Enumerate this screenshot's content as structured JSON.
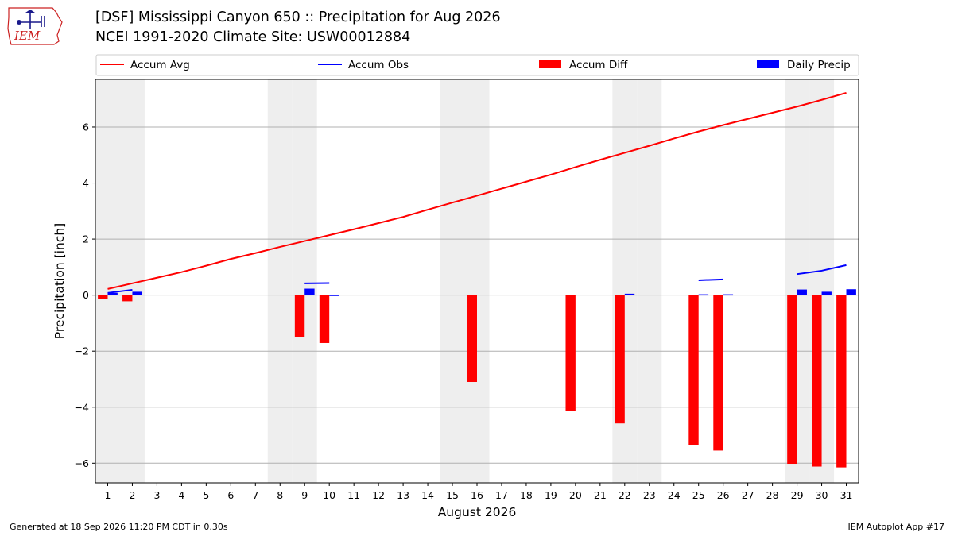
{
  "header": {
    "title_line1": "[DSF] Mississippi Canyon 650 :: Precipitation for Aug 2026",
    "title_line2": "NCEI 1991-2020 Climate Site: USW00012884"
  },
  "logo": {
    "text": "IEM",
    "accent_color": "#cc2222"
  },
  "footer": {
    "generated": "Generated at 18 Sep 2026 11:20 PM CDT in 0.30s",
    "app": "IEM Autoplot App #17"
  },
  "chart_data": {
    "type": "bar",
    "title": "[DSF] Mississippi Canyon 650 :: Precipitation for Aug 2026",
    "subtitle": "NCEI 1991-2020 Climate Site: USW00012884",
    "xlabel": "August 2026",
    "ylabel": "Precipitation [inch]",
    "x": [
      1,
      2,
      3,
      4,
      5,
      6,
      7,
      8,
      9,
      10,
      11,
      12,
      13,
      14,
      15,
      16,
      17,
      18,
      19,
      20,
      21,
      22,
      23,
      24,
      25,
      26,
      27,
      28,
      29,
      30,
      31
    ],
    "xlim": [
      0.5,
      31.5
    ],
    "ylim": [
      -6.7,
      7.7
    ],
    "yticks": [
      -6,
      -4,
      -2,
      0,
      2,
      4,
      6
    ],
    "ytick_labels": [
      "−6",
      "−4",
      "−2",
      "0",
      "2",
      "4",
      "6"
    ],
    "grid": true,
    "legend_placement": "top, above plot",
    "weekend_shading_days": [
      1,
      2,
      8,
      9,
      15,
      16,
      22,
      23,
      29,
      30
    ],
    "colors": {
      "avg": "#ff0000",
      "obs": "#0000ff",
      "diff": "#ff0000",
      "daily": "#0000ff",
      "shade": "#eeeeee",
      "grid": "#b0b0b0"
    },
    "series": [
      {
        "name": "Accum Avg",
        "kind": "line",
        "values": [
          0.22,
          0.42,
          0.62,
          0.82,
          1.05,
          1.29,
          1.5,
          1.72,
          1.93,
          2.14,
          2.35,
          2.57,
          2.79,
          3.05,
          3.3,
          3.55,
          3.8,
          4.05,
          4.3,
          4.57,
          4.83,
          5.08,
          5.33,
          5.59,
          5.84,
          6.07,
          6.29,
          6.51,
          6.73,
          6.97,
          7.22
        ]
      },
      {
        "name": "Accum Obs",
        "kind": "line",
        "segments": [
          {
            "x": [
              1,
              2
            ],
            "values": [
              0.08,
              0.19
            ]
          },
          {
            "x": [
              9,
              10
            ],
            "values": [
              0.42,
              0.43
            ]
          },
          {
            "x": [
              25,
              26
            ],
            "values": [
              0.53,
              0.56
            ]
          },
          {
            "x": [
              29,
              30,
              31
            ],
            "values": [
              0.75,
              0.87,
              1.07
            ]
          }
        ]
      },
      {
        "name": "Accum Diff",
        "kind": "bar",
        "values": [
          -0.13,
          -0.22,
          null,
          null,
          null,
          null,
          null,
          null,
          -1.51,
          -1.71,
          null,
          null,
          null,
          null,
          null,
          -3.1,
          null,
          null,
          null,
          -4.13,
          null,
          -4.58,
          null,
          null,
          -5.35,
          -5.55,
          null,
          null,
          -6.02,
          -6.12,
          -6.15
        ]
      },
      {
        "name": "Daily Precip",
        "kind": "bar",
        "values": [
          0.08,
          0.12,
          0,
          0,
          0,
          0,
          0,
          0,
          0.23,
          0.01,
          0,
          0,
          0,
          0,
          0,
          0,
          0,
          0,
          0,
          0,
          0,
          0.05,
          0,
          0,
          0.03,
          0.03,
          0,
          0,
          0.2,
          0.12,
          0.21
        ]
      }
    ]
  }
}
